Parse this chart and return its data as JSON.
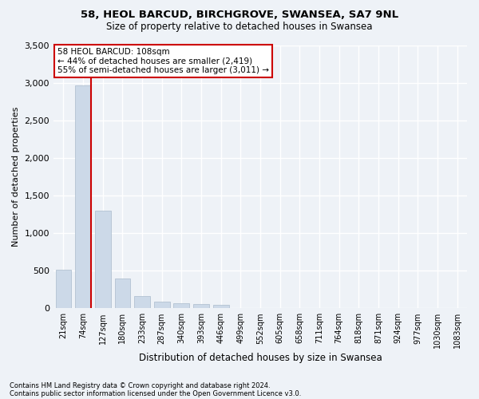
{
  "title1": "58, HEOL BARCUD, BIRCHGROVE, SWANSEA, SA7 9NL",
  "title2": "Size of property relative to detached houses in Swansea",
  "xlabel": "Distribution of detached houses by size in Swansea",
  "ylabel": "Number of detached properties",
  "footnote1": "Contains HM Land Registry data © Crown copyright and database right 2024.",
  "footnote2": "Contains public sector information licensed under the Open Government Licence v3.0.",
  "annotation_title": "58 HEOL BARCUD: 108sqm",
  "annotation_line1": "← 44% of detached houses are smaller (2,419)",
  "annotation_line2": "55% of semi-detached houses are larger (3,011) →",
  "bar_color": "#ccd9e8",
  "bar_edgecolor": "#aabbcc",
  "redline_color": "#cc0000",
  "redline_bin": 1,
  "categories": [
    "21sqm",
    "74sqm",
    "127sqm",
    "180sqm",
    "233sqm",
    "287sqm",
    "340sqm",
    "393sqm",
    "446sqm",
    "499sqm",
    "552sqm",
    "605sqm",
    "658sqm",
    "711sqm",
    "764sqm",
    "818sqm",
    "871sqm",
    "924sqm",
    "977sqm",
    "1030sqm",
    "1083sqm"
  ],
  "values": [
    510,
    2960,
    1300,
    400,
    160,
    90,
    70,
    60,
    50,
    0,
    0,
    0,
    0,
    0,
    0,
    0,
    0,
    0,
    0,
    0,
    0
  ],
  "ylim": [
    0,
    3500
  ],
  "yticks": [
    0,
    500,
    1000,
    1500,
    2000,
    2500,
    3000,
    3500
  ],
  "background_color": "#eef2f7",
  "grid_color": "#ffffff",
  "annotation_box_facecolor": "#ffffff",
  "annotation_box_edgecolor": "#cc0000",
  "figsize": [
    6.0,
    5.0
  ],
  "dpi": 100
}
